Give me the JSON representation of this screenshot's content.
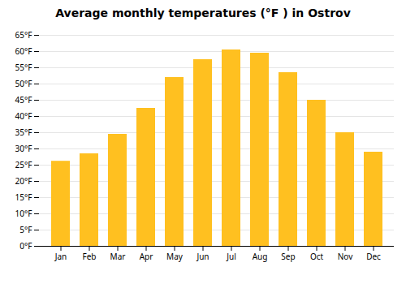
{
  "chart_data": {
    "type": "bar",
    "title": "Average monthly temperatures (°F ) in Ostrov",
    "categories": [
      "Jan",
      "Feb",
      "Mar",
      "Apr",
      "May",
      "Jun",
      "Jul",
      "Aug",
      "Sep",
      "Oct",
      "Nov",
      "Dec"
    ],
    "values": [
      26.2,
      28.5,
      34.5,
      42.5,
      52.0,
      57.5,
      60.5,
      59.5,
      53.5,
      45.0,
      35.0,
      29.0
    ],
    "color": "#FFC020",
    "ylim": [
      0,
      65
    ],
    "yticks": [
      {
        "value": 0,
        "label": "0°F"
      },
      {
        "value": 5,
        "label": "5°F"
      },
      {
        "value": 10,
        "label": "10°F"
      },
      {
        "value": 15,
        "label": "15°F"
      },
      {
        "value": 20,
        "label": "20°F"
      },
      {
        "value": 25,
        "label": "25°F"
      },
      {
        "value": 30,
        "label": "30°F"
      },
      {
        "value": 35,
        "label": "35°F"
      },
      {
        "value": 40,
        "label": "40°F"
      },
      {
        "value": 45,
        "label": "45°F"
      },
      {
        "value": 50,
        "label": "50°F"
      },
      {
        "value": 55,
        "label": "55°F"
      },
      {
        "value": 60,
        "label": "60°F"
      },
      {
        "value": 65,
        "label": "65°F"
      }
    ],
    "grid": true
  }
}
